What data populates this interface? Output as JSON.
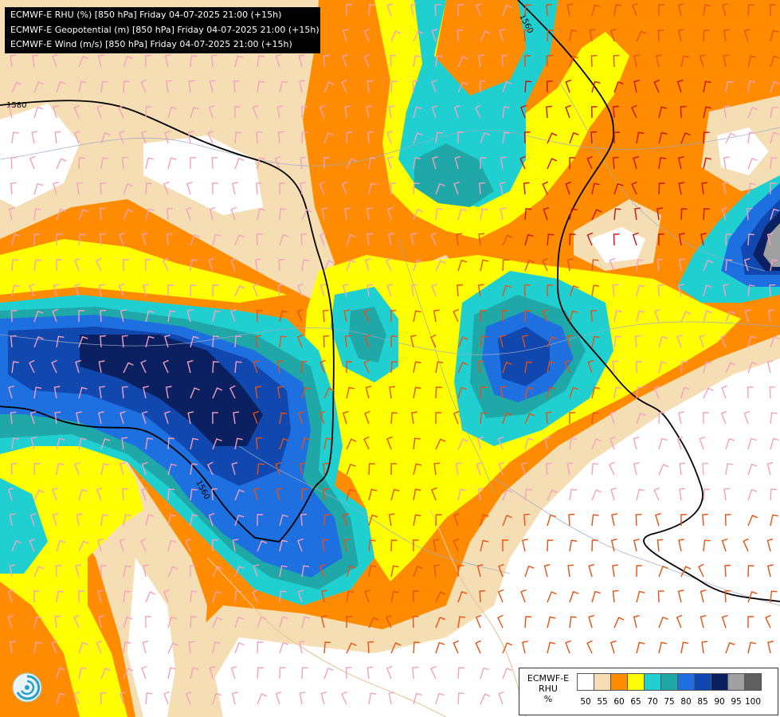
{
  "header": {
    "lines": [
      "ECMWF-E RHU (%) [850 hPa] Friday 04-07-2025 21:00 (+15h)",
      "ECMWF-E Geopotential (m) [850 hPa] Friday 04-07-2025 21:00 (+15h)",
      "ECMWF-E Wind (m/s) [850 hPa] Friday 04-07-2025 21:00 (+15h)"
    ]
  },
  "legend": {
    "model": "ECMWF-E",
    "variable": "RHU",
    "unit": "%",
    "ticks": [
      "50",
      "55",
      "60",
      "65",
      "70",
      "75",
      "80",
      "85",
      "90",
      "95",
      "100"
    ],
    "colors": [
      "#ffffff",
      "#f5deb3",
      "#ff8c00",
      "#ffff00",
      "#20d0d0",
      "#20a8a8",
      "#1e6fe0",
      "#1048b0",
      "#0a2060",
      "#a0a0a0",
      "#606060"
    ]
  },
  "contours": {
    "labels": [
      "1560",
      "1580",
      "1560"
    ]
  },
  "colors": {
    "white": "#ffffff",
    "wheat": "#f5deb3",
    "orange": "#ff8c00",
    "yellow": "#ffff00",
    "cyan": "#20d0d0",
    "teal": "#20a8a8",
    "blue": "#1e6fe0",
    "dark_blue": "#1048b0",
    "navy": "#0a2060",
    "grey": "#a0a0a0",
    "dark_grey": "#606060"
  }
}
